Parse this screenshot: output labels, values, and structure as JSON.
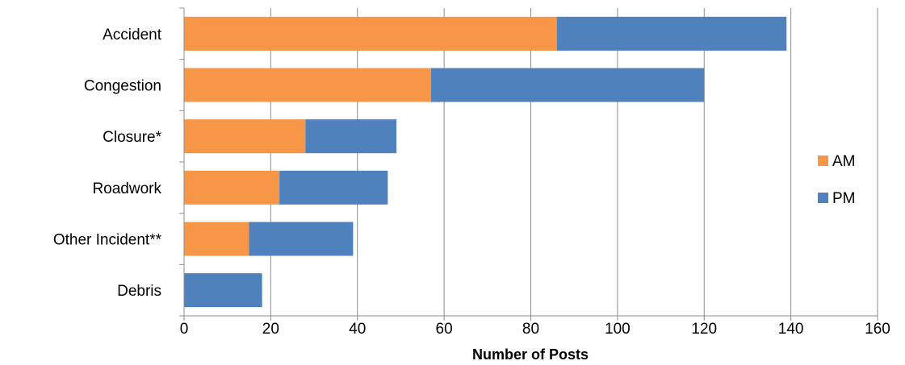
{
  "chart_data": {
    "type": "bar",
    "orientation": "horizontal",
    "stacked": true,
    "categories": [
      "Accident",
      "Congestion",
      "Closure*",
      "Roadwork",
      "Other Incident**",
      "Debris"
    ],
    "series": [
      {
        "name": "AM",
        "color": "#f79646",
        "values": [
          86,
          57,
          28,
          22,
          15,
          0
        ]
      },
      {
        "name": "PM",
        "color": "#4f81bd",
        "values": [
          53,
          63,
          21,
          25,
          24,
          18
        ]
      }
    ],
    "xlabel": "Number of Posts",
    "ylabel": "",
    "xlim": [
      0,
      160
    ],
    "xticks": [
      "0",
      "20",
      "40",
      "60",
      "80",
      "100",
      "120",
      "140",
      "160"
    ],
    "grid": "vertical",
    "legend": "right"
  }
}
